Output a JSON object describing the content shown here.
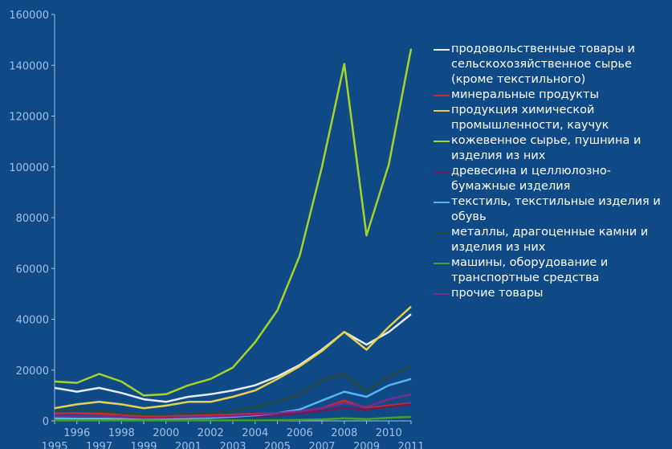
{
  "chart_data": {
    "type": "line",
    "title": "",
    "xlabel": "",
    "ylabel": "",
    "x": [
      1995,
      1996,
      1997,
      1998,
      1999,
      2000,
      2001,
      2002,
      2003,
      2004,
      2005,
      2006,
      2007,
      2008,
      2009,
      2010,
      2011
    ],
    "x_ticks_upper": [
      "1996",
      "1998",
      "2000",
      "2002",
      "2004",
      "2006",
      "2008",
      "2010"
    ],
    "x_ticks_lower": [
      "1995",
      "1997",
      "1999",
      "2001",
      "2003",
      "2005",
      "2007",
      "2009",
      "2011"
    ],
    "y_ticks": [
      "0",
      "20000",
      "40000",
      "60000",
      "80000",
      "100000",
      "120000",
      "140000",
      "160000"
    ],
    "ylim": [
      0,
      160000
    ],
    "xlim": [
      1995,
      2011
    ],
    "grid": false,
    "legend_position": "right",
    "series": [
      {
        "name": "продовольственные товары и сельскохозяйственное сырье (кроме текстильного)",
        "color": "#e8ecf4",
        "values": [
          13000,
          11500,
          13000,
          11000,
          8500,
          7500,
          9500,
          10500,
          12000,
          14000,
          17500,
          22000,
          28000,
          35000,
          30000,
          35000,
          42000
        ]
      },
      {
        "name": "минеральные продукты",
        "color": "#cc2a2a",
        "values": [
          3000,
          3000,
          2800,
          2500,
          1800,
          1800,
          2000,
          2200,
          2500,
          2800,
          3000,
          3500,
          5000,
          8000,
          5000,
          6000,
          7000
        ]
      },
      {
        "name": "продукция химической промышленности, каучук",
        "color": "#e6d24a",
        "values": [
          5000,
          6500,
          7500,
          6500,
          5000,
          6000,
          7500,
          7500,
          9500,
          12000,
          16500,
          21500,
          27500,
          35000,
          28000,
          37000,
          45000
        ]
      },
      {
        "name": "кожевенное сырье, пушнина и изделия из них",
        "color": "#a6d22a",
        "values": [
          15500,
          15000,
          18500,
          15500,
          10000,
          10500,
          14000,
          16500,
          21000,
          31000,
          43500,
          65000,
          100000,
          140500,
          73000,
          101000,
          146500
        ]
      },
      {
        "name": "древесина и целлюлозно-бумажные изделия",
        "color": "#701a52",
        "values": [
          1500,
          1300,
          1200,
          1100,
          900,
          900,
          1000,
          1200,
          1500,
          1800,
          2200,
          3000,
          4000,
          5000,
          4500,
          5500,
          6500
        ]
      },
      {
        "name": "текстиль, текстильные изделия и обувь",
        "color": "#5ab4ef",
        "values": [
          1000,
          900,
          900,
          800,
          700,
          800,
          1000,
          1200,
          1600,
          2200,
          3000,
          4500,
          8000,
          11500,
          9500,
          14000,
          16500
        ]
      },
      {
        "name": "металлы, драгоценные камни и изделия из них",
        "color": "#2b4a3a",
        "values": [
          4000,
          4500,
          4000,
          3000,
          2500,
          2500,
          3000,
          3000,
          4000,
          5500,
          7500,
          10500,
          16000,
          18500,
          11500,
          17500,
          21500
        ]
      },
      {
        "name": "машины, оборудование и транспортные средства",
        "color": "#44a02a",
        "values": [
          200,
          200,
          200,
          200,
          200,
          200,
          200,
          200,
          200,
          200,
          300,
          400,
          600,
          1000,
          700,
          1200,
          1600
        ]
      },
      {
        "name": "прочие товары",
        "color": "#7a2a8a",
        "values": [
          2000,
          1800,
          1800,
          1500,
          1200,
          1300,
          1500,
          1700,
          2000,
          2500,
          3000,
          3800,
          5000,
          7000,
          5500,
          8500,
          10500
        ]
      }
    ]
  }
}
